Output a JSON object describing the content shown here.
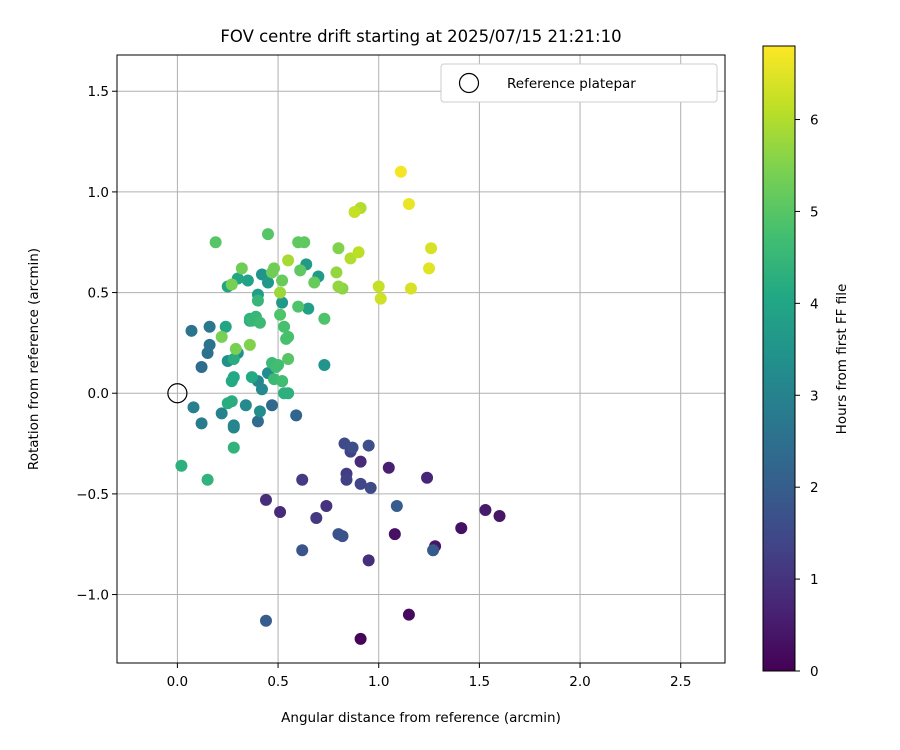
{
  "chart_data": {
    "type": "scatter",
    "title": "FOV centre drift starting at 2025/07/15 21:21:10",
    "xlabel": "Angular distance from reference (arcmin)",
    "ylabel": "Rotation from reference (arcmin)",
    "xlim": [
      -0.3,
      2.72
    ],
    "ylim": [
      -1.34,
      1.68
    ],
    "xticks": [
      0.0,
      0.5,
      1.0,
      1.5,
      2.0,
      2.5
    ],
    "xtick_labels": [
      "0.0",
      "0.5",
      "1.0",
      "1.5",
      "2.0",
      "2.5"
    ],
    "yticks": [
      1.5,
      1.0,
      0.5,
      0.0,
      -0.5,
      -1.0
    ],
    "ytick_labels": [
      "1.5",
      "1.0",
      "0.5",
      "0.0",
      "−0.5",
      "−1.0"
    ],
    "grid": true,
    "colormap": "viridis",
    "colorbar": {
      "label": "Hours from first FF file",
      "range": [
        0,
        6.8
      ],
      "ticks": [
        0,
        1,
        2,
        3,
        4,
        5,
        6
      ],
      "tick_labels": [
        "0",
        "1",
        "2",
        "3",
        "4",
        "5",
        "6"
      ]
    },
    "legend": {
      "position": "top-right",
      "entries": [
        "Reference platepar"
      ]
    },
    "reference_point": {
      "x": 0.0,
      "y": 0.0,
      "label": "Reference platepar"
    },
    "points": [
      {
        "x": 0.91,
        "y": -1.22,
        "hours": 0.1
      },
      {
        "x": 1.15,
        "y": -1.1,
        "hours": 0.2
      },
      {
        "x": 1.08,
        "y": -0.7,
        "hours": 0.3
      },
      {
        "x": 1.28,
        "y": -0.76,
        "hours": 0.4
      },
      {
        "x": 1.41,
        "y": -0.67,
        "hours": 0.3
      },
      {
        "x": 1.53,
        "y": -0.58,
        "hours": 0.5
      },
      {
        "x": 1.6,
        "y": -0.61,
        "hours": 0.4
      },
      {
        "x": 1.05,
        "y": -0.37,
        "hours": 0.6
      },
      {
        "x": 1.24,
        "y": -0.42,
        "hours": 0.7
      },
      {
        "x": 0.91,
        "y": -0.34,
        "hours": 0.8
      },
      {
        "x": 0.51,
        "y": -0.59,
        "hours": 0.8
      },
      {
        "x": 0.44,
        "y": -0.53,
        "hours": 0.9
      },
      {
        "x": 0.95,
        "y": -0.83,
        "hours": 0.9
      },
      {
        "x": 0.74,
        "y": -0.56,
        "hours": 1.0
      },
      {
        "x": 0.69,
        "y": -0.62,
        "hours": 1.1
      },
      {
        "x": 0.62,
        "y": -0.43,
        "hours": 1.2
      },
      {
        "x": 0.84,
        "y": -0.4,
        "hours": 1.2
      },
      {
        "x": 0.84,
        "y": -0.43,
        "hours": 1.3
      },
      {
        "x": 0.86,
        "y": -0.29,
        "hours": 1.3
      },
      {
        "x": 0.91,
        "y": -0.45,
        "hours": 1.4
      },
      {
        "x": 0.96,
        "y": -0.47,
        "hours": 1.5
      },
      {
        "x": 0.83,
        "y": -0.25,
        "hours": 1.5
      },
      {
        "x": 0.87,
        "y": -0.27,
        "hours": 1.6
      },
      {
        "x": 0.95,
        "y": -0.26,
        "hours": 1.6
      },
      {
        "x": 0.8,
        "y": -0.7,
        "hours": 1.7
      },
      {
        "x": 0.82,
        "y": -0.71,
        "hours": 1.7
      },
      {
        "x": 0.62,
        "y": -0.78,
        "hours": 1.8
      },
      {
        "x": 1.27,
        "y": -0.78,
        "hours": 1.9
      },
      {
        "x": 1.09,
        "y": -0.56,
        "hours": 2.0
      },
      {
        "x": 0.44,
        "y": -1.13,
        "hours": 2.0
      },
      {
        "x": 0.59,
        "y": -0.11,
        "hours": 2.2
      },
      {
        "x": 0.47,
        "y": -0.06,
        "hours": 2.3
      },
      {
        "x": 0.4,
        "y": -0.14,
        "hours": 2.4
      },
      {
        "x": 0.12,
        "y": 0.13,
        "hours": 2.4
      },
      {
        "x": 0.15,
        "y": 0.2,
        "hours": 2.5
      },
      {
        "x": 0.16,
        "y": 0.24,
        "hours": 2.6
      },
      {
        "x": 0.07,
        "y": 0.31,
        "hours": 2.6
      },
      {
        "x": 0.16,
        "y": 0.33,
        "hours": 2.7
      },
      {
        "x": 0.12,
        "y": -0.15,
        "hours": 2.8
      },
      {
        "x": 0.08,
        "y": -0.07,
        "hours": 2.9
      },
      {
        "x": 0.22,
        "y": -0.1,
        "hours": 3.0
      },
      {
        "x": 0.28,
        "y": -0.16,
        "hours": 3.0
      },
      {
        "x": 0.28,
        "y": -0.17,
        "hours": 3.1
      },
      {
        "x": 0.4,
        "y": 0.06,
        "hours": 3.1
      },
      {
        "x": 0.42,
        "y": 0.02,
        "hours": 3.2
      },
      {
        "x": 0.34,
        "y": -0.06,
        "hours": 3.2
      },
      {
        "x": 0.41,
        "y": -0.09,
        "hours": 3.3
      },
      {
        "x": 0.45,
        "y": 0.1,
        "hours": 3.3
      },
      {
        "x": 0.25,
        "y": 0.16,
        "hours": 3.4
      },
      {
        "x": 0.3,
        "y": 0.2,
        "hours": 3.4
      },
      {
        "x": 0.73,
        "y": 0.14,
        "hours": 3.5
      },
      {
        "x": 0.42,
        "y": 0.59,
        "hours": 3.5
      },
      {
        "x": 0.52,
        "y": 0.45,
        "hours": 3.6
      },
      {
        "x": 0.45,
        "y": 0.55,
        "hours": 3.6
      },
      {
        "x": 0.7,
        "y": 0.58,
        "hours": 3.7
      },
      {
        "x": 0.64,
        "y": 0.64,
        "hours": 3.7
      },
      {
        "x": 0.65,
        "y": 0.42,
        "hours": 3.8
      },
      {
        "x": 0.4,
        "y": 0.49,
        "hours": 3.8
      },
      {
        "x": 0.35,
        "y": 0.56,
        "hours": 3.9
      },
      {
        "x": 0.36,
        "y": 0.36,
        "hours": 3.9
      },
      {
        "x": 0.24,
        "y": 0.33,
        "hours": 4.0
      },
      {
        "x": 0.25,
        "y": 0.53,
        "hours": 4.0
      },
      {
        "x": 0.3,
        "y": 0.57,
        "hours": 4.0
      },
      {
        "x": 0.28,
        "y": 0.08,
        "hours": 4.1
      },
      {
        "x": 0.37,
        "y": 0.08,
        "hours": 4.1
      },
      {
        "x": 0.27,
        "y": 0.06,
        "hours": 4.1
      },
      {
        "x": 0.28,
        "y": 0.17,
        "hours": 4.2
      },
      {
        "x": 0.25,
        "y": -0.05,
        "hours": 4.2
      },
      {
        "x": 0.27,
        "y": -0.04,
        "hours": 4.2
      },
      {
        "x": 0.52,
        "y": 0.06,
        "hours": 4.3
      },
      {
        "x": 0.53,
        "y": 0.0,
        "hours": 4.3
      },
      {
        "x": 0.55,
        "y": 0.0,
        "hours": 4.3
      },
      {
        "x": 0.02,
        "y": -0.36,
        "hours": 4.3
      },
      {
        "x": 0.15,
        "y": -0.43,
        "hours": 4.4
      },
      {
        "x": 0.28,
        "y": -0.27,
        "hours": 4.4
      },
      {
        "x": 0.36,
        "y": 0.37,
        "hours": 4.4
      },
      {
        "x": 0.37,
        "y": 0.36,
        "hours": 4.5
      },
      {
        "x": 0.39,
        "y": 0.38,
        "hours": 4.5
      },
      {
        "x": 0.4,
        "y": 0.46,
        "hours": 4.5
      },
      {
        "x": 0.41,
        "y": 0.35,
        "hours": 4.6
      },
      {
        "x": 0.47,
        "y": 0.15,
        "hours": 4.6
      },
      {
        "x": 0.48,
        "y": 0.07,
        "hours": 4.6
      },
      {
        "x": 0.49,
        "y": 0.13,
        "hours": 4.7
      },
      {
        "x": 0.52,
        "y": 0.06,
        "hours": 4.7
      },
      {
        "x": 0.5,
        "y": 0.14,
        "hours": 4.7
      },
      {
        "x": 0.53,
        "y": 0.33,
        "hours": 4.8
      },
      {
        "x": 0.54,
        "y": 0.27,
        "hours": 4.8
      },
      {
        "x": 0.55,
        "y": 0.28,
        "hours": 4.8
      },
      {
        "x": 0.51,
        "y": 0.39,
        "hours": 4.9
      },
      {
        "x": 0.6,
        "y": 0.43,
        "hours": 4.9
      },
      {
        "x": 0.73,
        "y": 0.37,
        "hours": 4.9
      },
      {
        "x": 0.19,
        "y": 0.75,
        "hours": 5.0
      },
      {
        "x": 0.45,
        "y": 0.79,
        "hours": 5.0
      },
      {
        "x": 0.55,
        "y": 0.17,
        "hours": 5.0
      },
      {
        "x": 0.6,
        "y": 0.75,
        "hours": 5.1
      },
      {
        "x": 0.63,
        "y": 0.75,
        "hours": 5.1
      },
      {
        "x": 0.61,
        "y": 0.61,
        "hours": 5.1
      },
      {
        "x": 0.68,
        "y": 0.55,
        "hours": 5.2
      },
      {
        "x": 0.52,
        "y": 0.56,
        "hours": 5.2
      },
      {
        "x": 0.48,
        "y": 0.62,
        "hours": 5.3
      },
      {
        "x": 0.47,
        "y": 0.6,
        "hours": 5.3
      },
      {
        "x": 0.32,
        "y": 0.62,
        "hours": 5.3
      },
      {
        "x": 0.27,
        "y": 0.54,
        "hours": 5.4
      },
      {
        "x": 0.22,
        "y": 0.28,
        "hours": 5.4
      },
      {
        "x": 0.29,
        "y": 0.22,
        "hours": 5.4
      },
      {
        "x": 0.36,
        "y": 0.24,
        "hours": 5.5
      },
      {
        "x": 0.8,
        "y": 0.72,
        "hours": 5.5
      },
      {
        "x": 0.82,
        "y": 0.52,
        "hours": 5.6
      },
      {
        "x": 0.79,
        "y": 0.6,
        "hours": 5.7
      },
      {
        "x": 0.8,
        "y": 0.53,
        "hours": 5.7
      },
      {
        "x": 0.51,
        "y": 0.5,
        "hours": 5.8
      },
      {
        "x": 0.55,
        "y": 0.66,
        "hours": 5.9
      },
      {
        "x": 0.86,
        "y": 0.67,
        "hours": 6.0
      },
      {
        "x": 0.91,
        "y": 0.92,
        "hours": 6.0
      },
      {
        "x": 0.9,
        "y": 0.7,
        "hours": 6.1
      },
      {
        "x": 0.88,
        "y": 0.9,
        "hours": 6.2
      },
      {
        "x": 1.0,
        "y": 0.53,
        "hours": 6.2
      },
      {
        "x": 1.01,
        "y": 0.47,
        "hours": 6.3
      },
      {
        "x": 1.16,
        "y": 0.52,
        "hours": 6.4
      },
      {
        "x": 1.26,
        "y": 0.72,
        "hours": 6.4
      },
      {
        "x": 1.25,
        "y": 0.62,
        "hours": 6.5
      },
      {
        "x": 1.15,
        "y": 0.94,
        "hours": 6.6
      },
      {
        "x": 1.11,
        "y": 1.1,
        "hours": 6.7
      }
    ]
  }
}
